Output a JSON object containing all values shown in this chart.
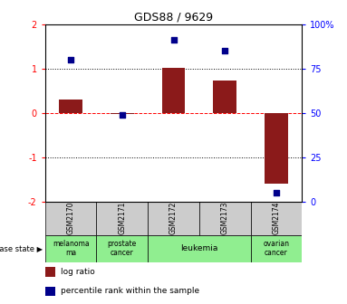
{
  "title": "GDS88 / 9629",
  "samples": [
    "GSM2170",
    "GSM2171",
    "GSM2172",
    "GSM2173",
    "GSM2174"
  ],
  "log_ratio": [
    0.3,
    -0.03,
    1.02,
    0.72,
    -1.6
  ],
  "percentile_rank": [
    80,
    49,
    91,
    85,
    5
  ],
  "bar_color": "#8B1A1A",
  "dot_color": "#00008B",
  "ylim_left": [
    -2,
    2
  ],
  "ylim_right": [
    0,
    100
  ],
  "yticks_left": [
    -2,
    -1,
    0,
    1,
    2
  ],
  "yticks_right": [
    0,
    25,
    50,
    75,
    100
  ],
  "ytick_labels_right": [
    "0",
    "25",
    "50",
    "75",
    "100%"
  ],
  "hline_red": 0,
  "hlines_black": [
    -1,
    1
  ],
  "background_color": "#ffffff",
  "sample_box_color": "#cccccc",
  "disease_groups": [
    {
      "label": "melanoma\nma",
      "start": 0,
      "end": 1,
      "color": "#90ee90"
    },
    {
      "label": "prostate\ncancer",
      "start": 1,
      "end": 2,
      "color": "#90ee90"
    },
    {
      "label": "leukemia",
      "start": 2,
      "end": 4,
      "color": "#90ee90"
    },
    {
      "label": "ovarian\ncancer",
      "start": 4,
      "end": 5,
      "color": "#90ee90"
    }
  ],
  "legend_items": [
    {
      "color": "#8B1A1A",
      "label": "log ratio"
    },
    {
      "color": "#00008B",
      "label": "percentile rank within the sample"
    }
  ]
}
